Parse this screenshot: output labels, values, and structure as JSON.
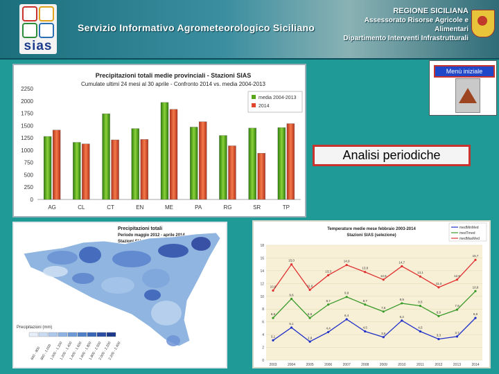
{
  "header": {
    "logo_text": "sias",
    "service_title": "Servizio Informativo Agrometeorologico Siciliano",
    "region_lines": [
      "REGIONE SICILIANA",
      "Assessorato Risorse Agricole e Alimentari",
      "Dipartimento Interventi Infrastrutturali"
    ]
  },
  "nav": {
    "menu_label": "Menù iniziale",
    "up_icon": "up-arrow-icon",
    "analysis_label": "Analisi periodiche"
  },
  "colors": {
    "background": "#1f9a96",
    "green_series": "#5aa61a",
    "red_series": "#e0462b",
    "menu_blue": "#1f47c8"
  },
  "chart_data": [
    {
      "type": "bar",
      "title": "Precipitazioni totali medie provinciali - Stazioni SIAS",
      "subtitle": "Cumulate ultimi 24 mesi al 30 aprile - Confronto 2014 vs. media 2004-2013",
      "categories": [
        "AG",
        "CL",
        "CT",
        "EN",
        "ME",
        "PA",
        "RG",
        "SR",
        "TP"
      ],
      "yticks": [
        "0",
        "250",
        "500",
        "750",
        "1000",
        "1250",
        "1500",
        "1750",
        "2000",
        "2250"
      ],
      "ylim": [
        0,
        2250
      ],
      "series": [
        {
          "name": "media 2004-2013",
          "values": [
            1280,
            1160,
            1740,
            1440,
            1970,
            1470,
            1300,
            1450,
            1460
          ]
        },
        {
          "name": "2014",
          "values": [
            1410,
            1130,
            1210,
            1220,
            1830,
            1580,
            1090,
            940,
            1540
          ]
        }
      ],
      "legend_position": "top-right"
    },
    {
      "type": "heatmap",
      "title": "Precipitazioni totali",
      "subtitle": "Periodo maggio 2012 - aprile 2014",
      "source": "Stazioni SIAS",
      "legend_title": "Precipitazioni (mm)",
      "legend_classes": [
        "600 - 800",
        "800 - 1.000",
        "1.000 - 1.200",
        "1.200 - 1.400",
        "1.400 - 1.600",
        "1.600 - 1.800",
        "1.800 - 2.000",
        "2.000 - 2.200",
        "2.200 - 2.400"
      ]
    },
    {
      "type": "line",
      "title": "Temperature medie mese febbraio 2003-2014",
      "subtitle": "Stazioni SIAS (selezione)",
      "x": [
        "2003",
        "2004",
        "2005",
        "2006",
        "2007",
        "2008",
        "2009",
        "2010",
        "2011",
        "2012",
        "2013",
        "2014"
      ],
      "ylim": [
        0,
        18
      ],
      "yticks": [
        "0",
        "2",
        "4",
        "6",
        "8",
        "10",
        "12",
        "14",
        "16",
        "18"
      ],
      "series": [
        {
          "name": "medMaxMed",
          "values": [
            10.9,
            15.0,
            11.0,
            13.3,
            14.9,
            13.8,
            12.6,
            14.7,
            13.1,
            11.4,
            12.6,
            15.7
          ]
        },
        {
          "name": "medTmed",
          "values": [
            6.6,
            9.6,
            6.6,
            8.7,
            9.9,
            8.7,
            7.6,
            8.9,
            8.5,
            6.9,
            7.9,
            10.8
          ]
        },
        {
          "name": "medMinMed",
          "values": [
            3.1,
            5.1,
            2.9,
            4.4,
            6.4,
            4.5,
            3.6,
            6.2,
            4.5,
            3.3,
            3.7,
            6.6
          ]
        }
      ],
      "series_labels": [
        [
          "10,9",
          "15,0",
          "11,0",
          "13,3",
          "14,9",
          "13,8",
          "12,6",
          "14,7",
          "13,1",
          "11,4",
          "12,6",
          "15,7"
        ],
        [
          "6,6",
          "9,6",
          "6,6",
          "8,7",
          "9,9",
          "8,7",
          "7,6",
          "8,9",
          "8,5",
          "6,9",
          "7,9",
          "10,8"
        ],
        [
          "3,1",
          "5,1",
          "2,9",
          "4,4",
          "6,4",
          "4,5",
          "3,6",
          "6,2",
          "4,5",
          "3,3",
          "3,7",
          "6,6"
        ]
      ],
      "colors": [
        "#e03030",
        "#3a9a2a",
        "#1f2fc8"
      ],
      "legend_position": "top-right"
    }
  ]
}
